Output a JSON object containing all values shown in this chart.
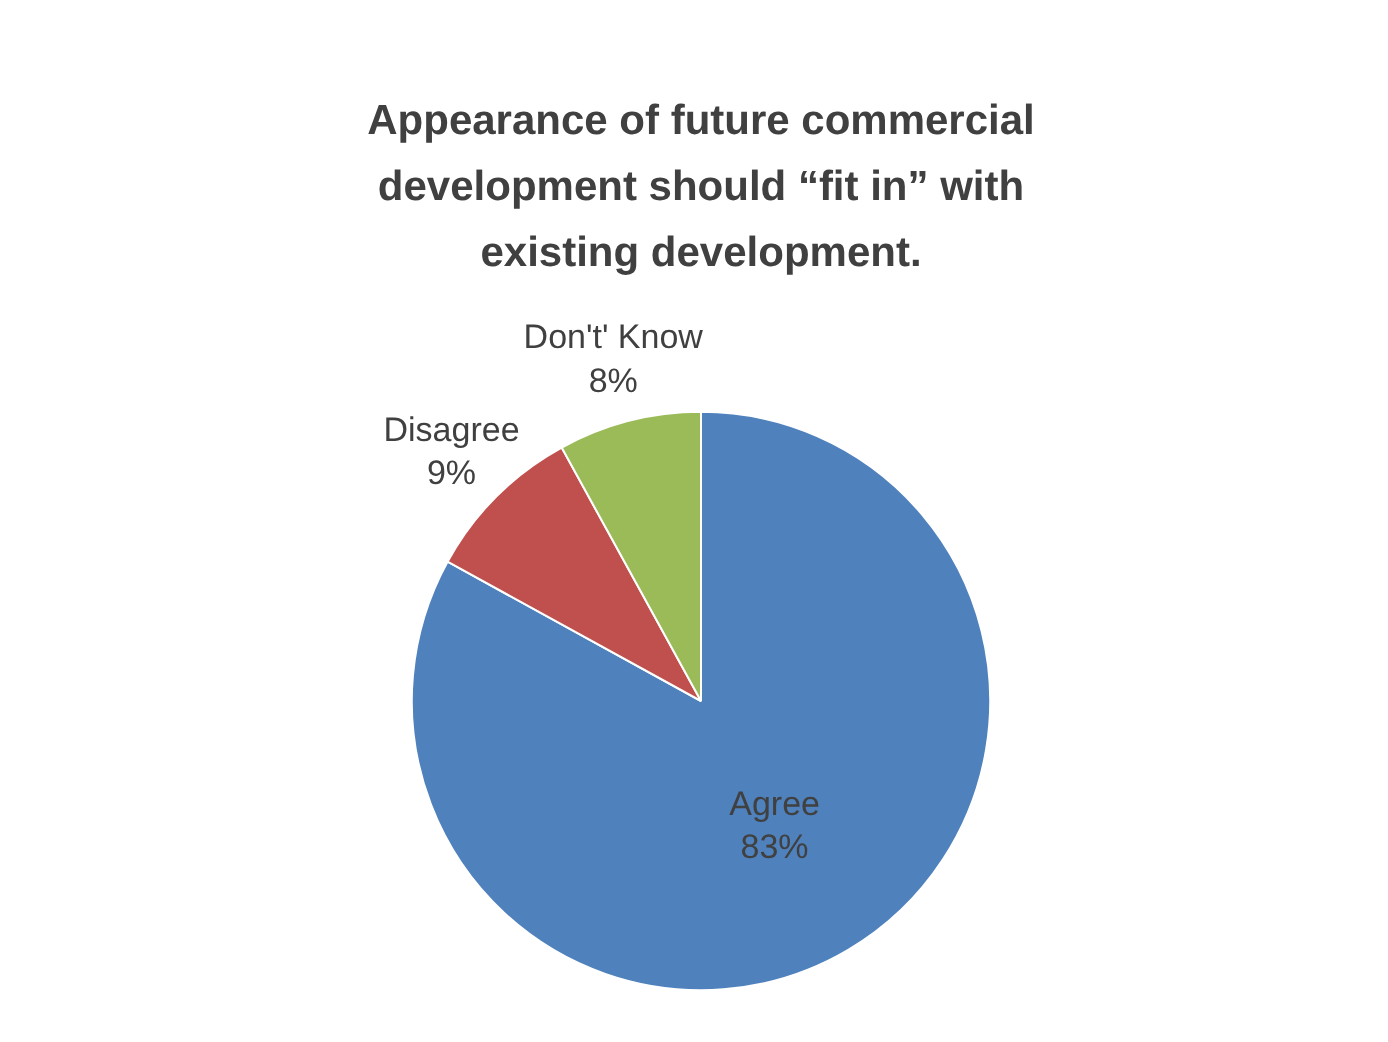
{
  "chart_data": {
    "type": "pie",
    "title": "Appearance of future commercial development should “fit in” with existing development.",
    "categories": [
      "Agree",
      "Disagree",
      "Don't' Know"
    ],
    "values": [
      83,
      9,
      8
    ],
    "colors": [
      "#4f81bd",
      "#c0504d",
      "#9bbb59"
    ],
    "value_labels": [
      "83%",
      "9%",
      "8%"
    ]
  }
}
